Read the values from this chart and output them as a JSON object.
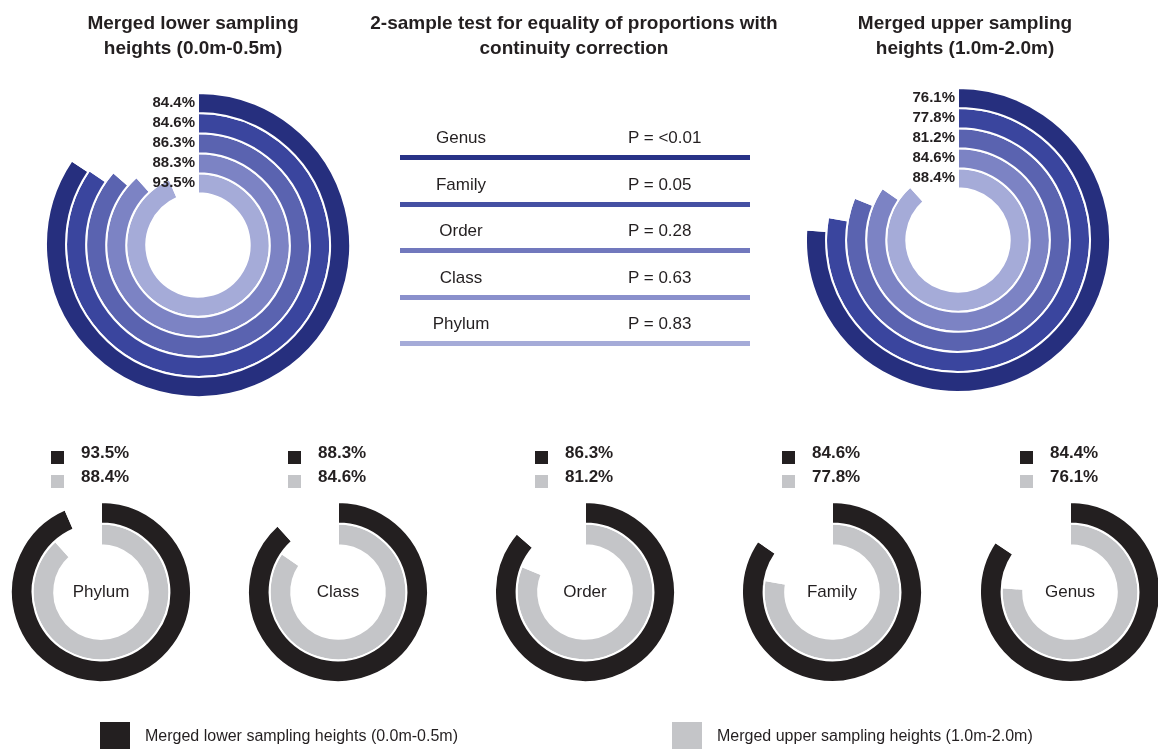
{
  "chart_data": [
    {
      "type": "other",
      "title": "Merged lower sampling heights (0.0m-0.5m)",
      "values": [
        84.4,
        84.6,
        86.3,
        88.3,
        93.5
      ],
      "value_labels": [
        "84.4%",
        "84.6%",
        "86.3%",
        "88.3%",
        "93.5%"
      ],
      "colors": [
        "#262f7e",
        "#3a459e",
        "#5a63b0",
        "#7c83c4",
        "#a5abd8"
      ]
    },
    {
      "type": "other",
      "title": "2-sample test for equality of proportions with continuity correction",
      "categories": [
        "Genus",
        "Family",
        "Order",
        "Class",
        "Phylum"
      ],
      "value_labels": [
        "P = <0.01",
        "P = 0.05",
        "P = 0.28",
        "P = 0.63",
        "P = 0.83"
      ],
      "colors": [
        "#283287",
        "#4550a3",
        "#7178bd",
        "#8a90cc",
        "#a5abd8"
      ]
    },
    {
      "type": "other",
      "title": "Merged upper sampling heights (1.0m-2.0m)",
      "values": [
        76.1,
        77.8,
        81.2,
        84.6,
        88.4
      ],
      "value_labels": [
        "76.1%",
        "77.8%",
        "81.2%",
        "84.6%",
        "88.4%"
      ],
      "colors": [
        "#262f7e",
        "#3a459e",
        "#5a63b0",
        "#7c83c4",
        "#a5abd8"
      ]
    },
    {
      "type": "other",
      "title": "Phylum",
      "values": [
        93.5,
        88.4
      ],
      "value_labels": [
        "93.5%",
        "88.4%"
      ],
      "colors": [
        "#231f20",
        "#c4c5c8"
      ]
    },
    {
      "type": "other",
      "title": "Class",
      "values": [
        88.3,
        84.6
      ],
      "value_labels": [
        "88.3%",
        "84.6%"
      ],
      "colors": [
        "#231f20",
        "#c4c5c8"
      ]
    },
    {
      "type": "other",
      "title": "Order",
      "values": [
        86.3,
        81.2
      ],
      "value_labels": [
        "86.3%",
        "81.2%"
      ],
      "colors": [
        "#231f20",
        "#c4c5c8"
      ]
    },
    {
      "type": "other",
      "title": "Family",
      "values": [
        84.6,
        77.8
      ],
      "value_labels": [
        "84.6%",
        "77.8%"
      ],
      "colors": [
        "#231f20",
        "#c4c5c8"
      ]
    },
    {
      "type": "other",
      "title": "Genus",
      "values": [
        84.4,
        76.1
      ],
      "value_labels": [
        "84.4%",
        "76.1%"
      ],
      "colors": [
        "#231f20",
        "#c4c5c8"
      ]
    },
    {
      "type": "other",
      "categories": [
        "Merged lower sampling heights (0.0m-0.5m)",
        "Merged upper sampling heights (1.0m-2.0m)"
      ],
      "colors": [
        "#231f20",
        "#c4c5c8"
      ]
    }
  ]
}
